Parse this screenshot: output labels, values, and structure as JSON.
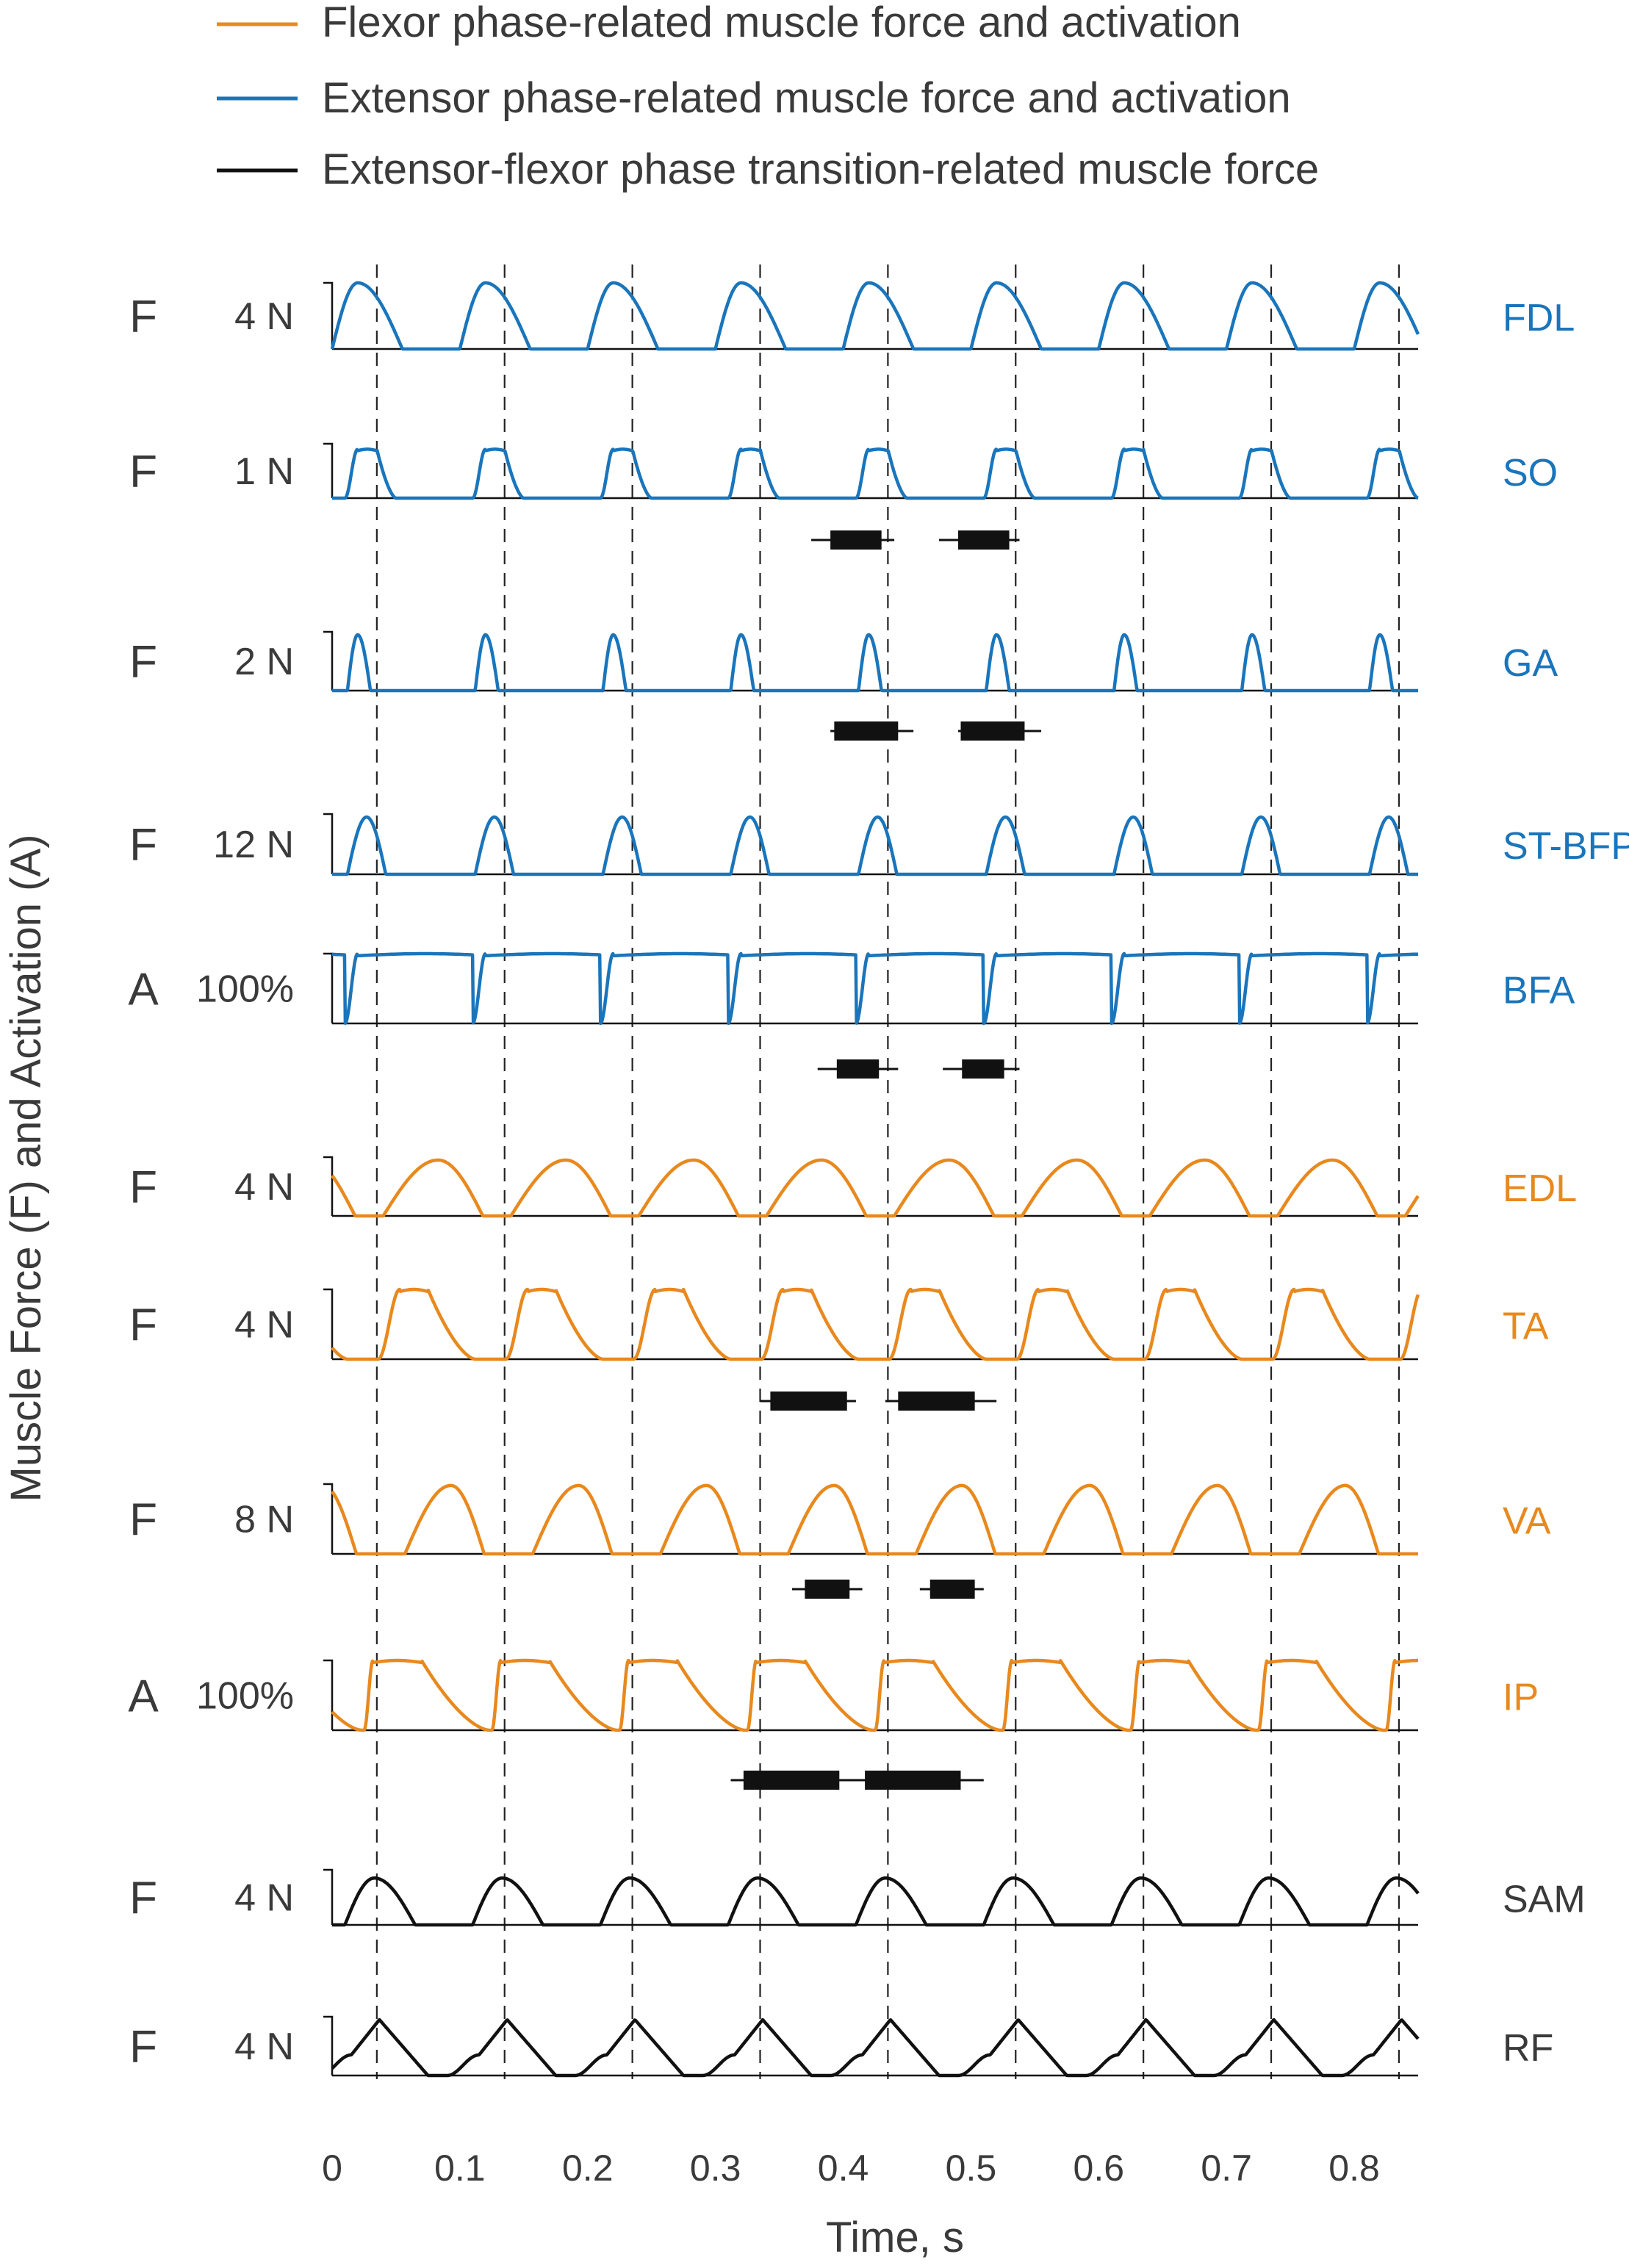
{
  "chart_data": {
    "type": "line",
    "ylabel": "Muscle Force (F) and Activation (A)",
    "xlabel": "Time, s",
    "xlim": [
      0,
      0.85
    ],
    "x_ticks": [
      0,
      0.1,
      0.2,
      0.3,
      0.4,
      0.5,
      0.6,
      0.7,
      0.8
    ],
    "x_tick_labels": [
      "0",
      "0.1",
      "0.2",
      "0.3",
      "0.4",
      "0.5",
      "0.6",
      "0.7",
      "0.8"
    ],
    "phase_transition_times": [
      0.035,
      0.135,
      0.235,
      0.335,
      0.435,
      0.535,
      0.635,
      0.735,
      0.835
    ],
    "cycle_period": 0.1,
    "colors": {
      "flexor": "#E8891E",
      "extensor": "#1A75BB",
      "transition": "#111111"
    },
    "legend": {
      "placement": "top",
      "entries": [
        {
          "label": "Flexor phase-related muscle force and activation",
          "group": "flexor"
        },
        {
          "label": "Extensor phase-related muscle force and activation",
          "group": "extensor"
        },
        {
          "label": "Extensor-flexor phase transition-related muscle force",
          "group": "transition"
        }
      ]
    },
    "series": [
      {
        "name": "FDL",
        "group": "extensor",
        "kind": "F",
        "scale_label": "4 N",
        "scale_value": 4,
        "unit": "N",
        "waveform": {
          "shape": "peak",
          "onset": 0.0,
          "peak": 0.02,
          "offset": 0.055,
          "peak_value": 1.0
        }
      },
      {
        "name": "SO",
        "group": "extensor",
        "kind": "F",
        "scale_label": "1 N",
        "scale_value": 1,
        "unit": "N",
        "waveform": {
          "shape": "plateau",
          "onset": 0.01,
          "plateau_start": 0.02,
          "plateau_end": 0.035,
          "offset": 0.05,
          "peak_value": 0.9
        }
      },
      {
        "name": "GA",
        "group": "extensor",
        "kind": "F",
        "scale_label": "2 N",
        "scale_value": 2,
        "unit": "N",
        "waveform": {
          "shape": "peak",
          "onset": 0.012,
          "peak": 0.02,
          "offset": 0.03,
          "peak_value": 0.95
        }
      },
      {
        "name": "ST-BFP",
        "group": "extensor",
        "kind": "F",
        "scale_label": "12 N",
        "scale_value": 12,
        "unit": "N",
        "waveform": {
          "shape": "peak",
          "onset": 0.012,
          "peak": 0.027,
          "offset": 0.042,
          "peak_value": 0.95
        }
      },
      {
        "name": "BFA",
        "group": "extensor",
        "kind": "A",
        "scale_label": "100%",
        "scale_value": 100,
        "unit": "%",
        "waveform": {
          "shape": "plateau",
          "onset": -0.09,
          "plateau_start": -0.08,
          "plateau_end": 0.025,
          "offset": 0.073,
          "peak_value": 1.0
        }
      },
      {
        "name": "EDL",
        "group": "flexor",
        "kind": "F",
        "scale_label": "4 N",
        "scale_value": 4,
        "unit": "N",
        "waveform": {
          "shape": "peak",
          "onset": 0.04,
          "peak": 0.083,
          "offset": 0.118,
          "peak_value": 0.95
        }
      },
      {
        "name": "TA",
        "group": "flexor",
        "kind": "F",
        "scale_label": "4 N",
        "scale_value": 4,
        "unit": "N",
        "waveform": {
          "shape": "plateau",
          "onset": 0.036,
          "plateau_start": 0.053,
          "plateau_end": 0.075,
          "offset": 0.112,
          "peak_value": 1.0
        }
      },
      {
        "name": "VA",
        "group": "flexor",
        "kind": "F",
        "scale_label": "8 N",
        "scale_value": 8,
        "unit": "N",
        "waveform": {
          "shape": "peak",
          "onset": 0.057,
          "peak": 0.093,
          "offset": 0.119,
          "peak_value": 0.98
        }
      },
      {
        "name": "IP",
        "group": "flexor",
        "kind": "A",
        "scale_label": "100%",
        "scale_value": 100,
        "unit": "%",
        "waveform": {
          "shape": "plateau",
          "onset": 0.025,
          "plateau_start": 0.032,
          "plateau_end": 0.07,
          "offset": 0.123,
          "peak_value": 1.0
        }
      },
      {
        "name": "SAM",
        "group": "transition",
        "kind": "F",
        "scale_label": "4 N",
        "scale_value": 4,
        "unit": "N",
        "waveform": {
          "shape": "peak",
          "onset": 0.01,
          "peak": 0.033,
          "offset": 0.065,
          "peak_value": 0.85
        }
      },
      {
        "name": "RF",
        "group": "transition",
        "kind": "F",
        "scale_label": "4 N",
        "scale_value": 4,
        "unit": "N",
        "waveform": {
          "shape": "two-step",
          "onset": -0.01,
          "knee": 0.015,
          "knee_value": 0.35,
          "peak": 0.037,
          "offset": 0.075,
          "peak_value": 0.95
        }
      }
    ],
    "range_bars": [
      {
        "after": "SO",
        "items": [
          {
            "whisker": [
              0.375,
              0.44
            ],
            "box": [
              0.39,
              0.43
            ]
          },
          {
            "whisker": [
              0.475,
              0.538
            ],
            "box": [
              0.49,
              0.53
            ]
          }
        ]
      },
      {
        "after": "GA",
        "items": [
          {
            "whisker": [
              0.39,
              0.455
            ],
            "box": [
              0.393,
              0.443
            ]
          },
          {
            "whisker": [
              0.49,
              0.555
            ],
            "box": [
              0.492,
              0.542
            ]
          }
        ]
      },
      {
        "after": "BFA",
        "items": [
          {
            "whisker": [
              0.38,
              0.443
            ],
            "box": [
              0.395,
              0.428
            ]
          },
          {
            "whisker": [
              0.478,
              0.538
            ],
            "box": [
              0.493,
              0.526
            ]
          }
        ]
      },
      {
        "after": "TA",
        "items": [
          {
            "whisker": [
              0.335,
              0.41
            ],
            "box": [
              0.343,
              0.403
            ]
          },
          {
            "whisker": [
              0.433,
              0.52
            ],
            "box": [
              0.443,
              0.503
            ]
          }
        ]
      },
      {
        "after": "VA",
        "items": [
          {
            "whisker": [
              0.36,
              0.415
            ],
            "box": [
              0.37,
              0.405
            ]
          },
          {
            "whisker": [
              0.46,
              0.51
            ],
            "box": [
              0.468,
              0.503
            ]
          }
        ]
      },
      {
        "after": "IP",
        "items": [
          {
            "whisker": [
              0.312,
              0.397
            ],
            "box": [
              0.322,
              0.397
            ]
          },
          {
            "whisker": [
              0.397,
              0.51
            ],
            "box": [
              0.417,
              0.492
            ]
          }
        ]
      }
    ]
  }
}
